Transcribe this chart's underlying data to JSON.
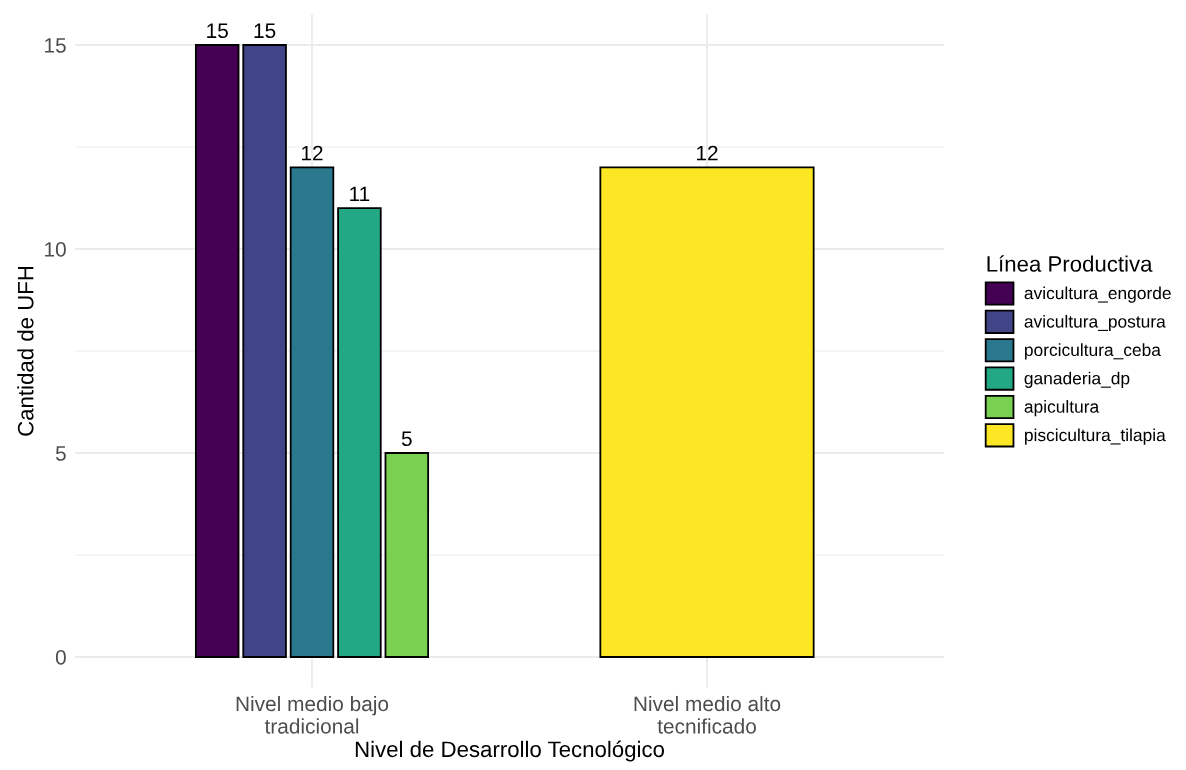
{
  "chart_data": {
    "type": "bar",
    "xlabel": "Nivel de Desarrollo Tecnológico",
    "ylabel": "Cantidad de UFH",
    "legend_title": "Línea Productiva",
    "categories": [
      "Nivel medio bajo\ntradicional",
      "Nivel medio alto\ntecnificado"
    ],
    "series": [
      {
        "name": "avicultura_engorde",
        "color": "#440154",
        "values": [
          15,
          null
        ]
      },
      {
        "name": "avicultura_postura",
        "color": "#414487",
        "values": [
          15,
          null
        ]
      },
      {
        "name": "porcicultura_ceba",
        "color": "#2a788e",
        "values": [
          12,
          null
        ]
      },
      {
        "name": "ganaderia_dp",
        "color": "#22a884",
        "values": [
          11,
          null
        ]
      },
      {
        "name": "apicultura",
        "color": "#7ad151",
        "values": [
          5,
          null
        ]
      },
      {
        "name": "piscicultura_tilapia",
        "color": "#fde725",
        "values": [
          null,
          12
        ]
      }
    ],
    "ylim": [
      -0.75,
      15.75
    ],
    "yticks": [
      0,
      5,
      10,
      15
    ],
    "grid": true,
    "legend": "right",
    "data_labels": true
  }
}
